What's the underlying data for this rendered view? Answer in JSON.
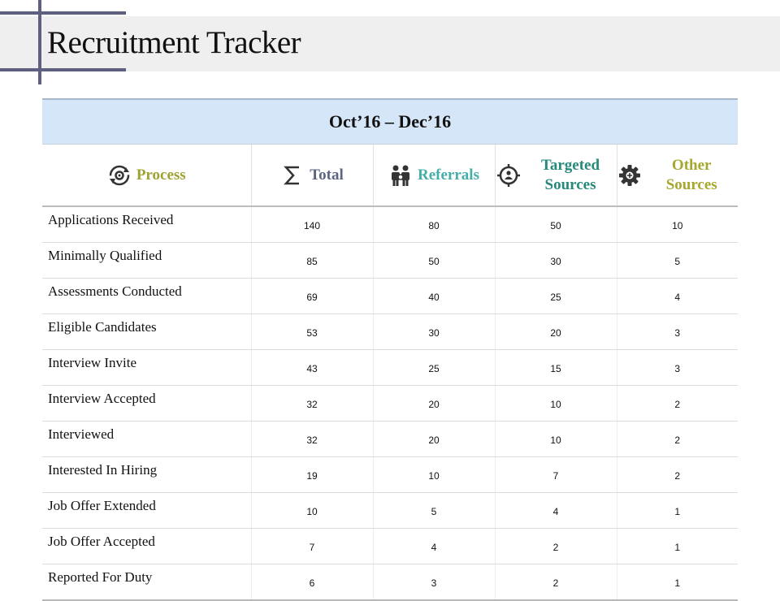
{
  "title": "Recruitment Tracker",
  "period": "Oct’16 – Dec’16",
  "columns": [
    {
      "label": "Process",
      "icon": "process-cycle-icon",
      "color": "#9ea232"
    },
    {
      "label": "Total",
      "icon": "sigma-icon",
      "color": "#5e6480"
    },
    {
      "label": "Referrals",
      "icon": "people-icon",
      "color": "#45aea9"
    },
    {
      "label": "Targeted Sources",
      "icon": "target-icon",
      "color": "#258a7a"
    },
    {
      "label": "Other Sources",
      "icon": "gear-icon",
      "color": "#a6a82e"
    }
  ],
  "rows": [
    {
      "process": "Applications Received",
      "total": "140",
      "referrals": "80",
      "targeted": "50",
      "other": "10"
    },
    {
      "process": "Minimally Qualified",
      "total": "85",
      "referrals": "50",
      "targeted": "30",
      "other": "5"
    },
    {
      "process": "Assessments Conducted",
      "total": "69",
      "referrals": "40",
      "targeted": "25",
      "other": "4"
    },
    {
      "process": "Eligible Candidates",
      "total": "53",
      "referrals": "30",
      "targeted": "20",
      "other": "3"
    },
    {
      "process": "Interview Invite",
      "total": "43",
      "referrals": "25",
      "targeted": "15",
      "other": "3"
    },
    {
      "process": "Interview Accepted",
      "total": "32",
      "referrals": "20",
      "targeted": "10",
      "other": "2"
    },
    {
      "process": "Interviewed",
      "total": "32",
      "referrals": "20",
      "targeted": "10",
      "other": "2"
    },
    {
      "process": "Interested In Hiring",
      "total": "19",
      "referrals": "10",
      "targeted": "7",
      "other": "2"
    },
    {
      "process": "Job Offer Extended",
      "total": "10",
      "referrals": "5",
      "targeted": "4",
      "other": "1"
    },
    {
      "process": "Job Offer Accepted",
      "total": "7",
      "referrals": "4",
      "targeted": "2",
      "other": "1"
    },
    {
      "process": "Reported For Duty",
      "total": "6",
      "referrals": "3",
      "targeted": "2",
      "other": "1"
    }
  ]
}
